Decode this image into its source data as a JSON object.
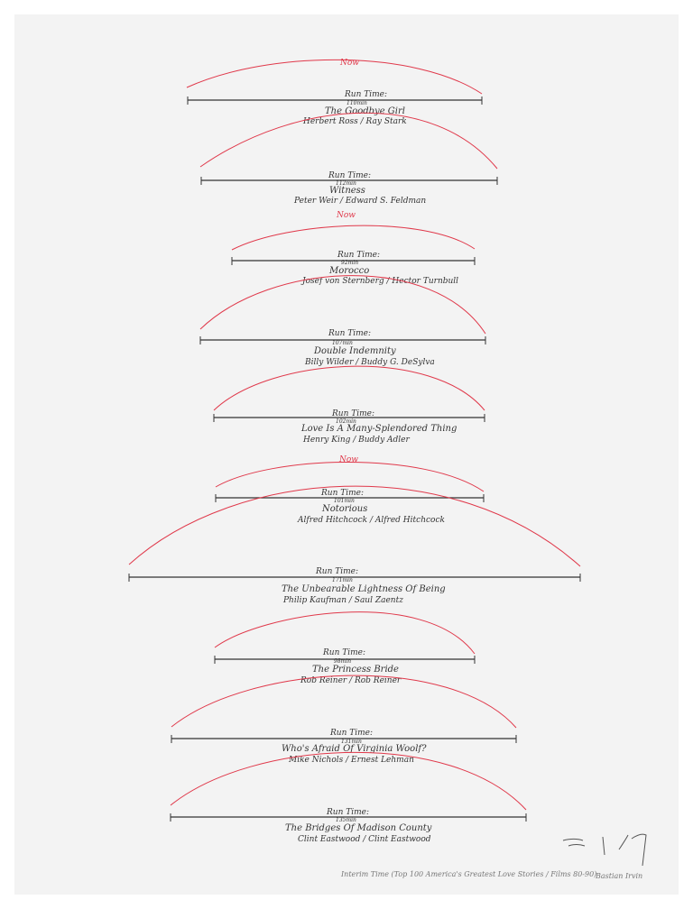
{
  "artwork": {
    "footer_caption": "Interim Time (Top 100 America's Greatest Love Stories / Films 80-90)",
    "signature": "Bastian Irvin",
    "colors": {
      "ink": "#333333",
      "arc": "#e0384a",
      "paper": "#f3f3f3"
    }
  },
  "timelines": [
    {
      "run_label": "Run Time:",
      "minutes": "110min",
      "title": "The Goodbye Girl",
      "credits": "Herbert Ross / Ray Stark",
      "now": "Now"
    },
    {
      "run_label": "Run Time:",
      "minutes": "112min",
      "title": "Witness",
      "credits": "Peter Weir / Edward S. Feldman",
      "now": ""
    },
    {
      "run_label": "Run Time:",
      "minutes": "92min",
      "title": "Morocco",
      "credits": "Josef von Sternberg / Hector Turnbull",
      "now": "Now"
    },
    {
      "run_label": "Run Time:",
      "minutes": "107min",
      "title": "Double Indemnity",
      "credits": "Billy Wilder / Buddy G. DeSylva",
      "now": ""
    },
    {
      "run_label": "Run Time:",
      "minutes": "102min",
      "title": "Love Is A Many-Splendored Thing",
      "credits": "Henry King / Buddy Adler",
      "now": ""
    },
    {
      "run_label": "Run Time:",
      "minutes": "101min",
      "title": "Notorious",
      "credits": "Alfred Hitchcock / Alfred Hitchcock",
      "now": "Now"
    },
    {
      "run_label": "Run Time:",
      "minutes": "171min",
      "title": "The Unbearable Lightness Of Being",
      "credits": "Philip Kaufman / Saul Zaentz",
      "now": ""
    },
    {
      "run_label": "Run Time:",
      "minutes": "98min",
      "title": "The Princess Bride",
      "credits": "Rob Reiner / Rob Reiner",
      "now": ""
    },
    {
      "run_label": "Run Time:",
      "minutes": "131min",
      "title": "Who's Afraid Of Virginia Woolf?",
      "credits": "Mike Nichols / Ernest Lehman",
      "now": ""
    },
    {
      "run_label": "Run Time:",
      "minutes": "135min",
      "title": "The Bridges Of Madison County",
      "credits": "Clint Eastwood / Clint Eastwood",
      "now": ""
    }
  ]
}
